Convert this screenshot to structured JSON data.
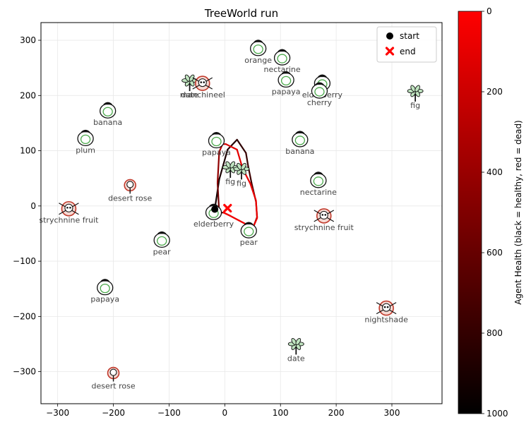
{
  "chart_data": {
    "type": "scatter",
    "title": "TreeWorld run",
    "xlabel": "",
    "ylabel": "",
    "xlim": [
      -330,
      390
    ],
    "ylim": [
      -358,
      332
    ],
    "xticks": [
      -300,
      -200,
      -100,
      0,
      100,
      200,
      300
    ],
    "yticks": [
      -300,
      -200,
      -100,
      0,
      100,
      200,
      300
    ],
    "grid": true,
    "legend": {
      "position": "top-right",
      "entries": [
        {
          "label": "start",
          "marker": "circle",
          "color": "#000000"
        },
        {
          "label": "end",
          "marker": "x",
          "color": "#ff0000"
        }
      ]
    },
    "colorbar": {
      "label": "Agent Health (black = healthy, red = dead)",
      "range": [
        0,
        1000
      ],
      "ticks": [
        0,
        200,
        400,
        600,
        800,
        1000
      ],
      "low_color": "#000000",
      "high_color": "#ff0000"
    },
    "objects": [
      {
        "label": "orange",
        "x": 60,
        "y": 285,
        "kind": "fruit"
      },
      {
        "label": "nectarine",
        "x": 103,
        "y": 268,
        "kind": "fruit"
      },
      {
        "label": "papaya",
        "x": 110,
        "y": 228,
        "kind": "fruit"
      },
      {
        "label": "elderberry",
        "x": 175,
        "y": 222,
        "kind": "fruit"
      },
      {
        "label": "cherry",
        "x": 170,
        "y": 208,
        "kind": "fruit"
      },
      {
        "label": "fig",
        "x": 342,
        "y": 203,
        "kind": "tree"
      },
      {
        "label": "date",
        "x": -63,
        "y": 222,
        "kind": "tree"
      },
      {
        "label": "manchineel",
        "x": -40,
        "y": 222,
        "kind": "skull"
      },
      {
        "label": "banana",
        "x": -210,
        "y": 172,
        "kind": "fruit"
      },
      {
        "label": "plum",
        "x": -250,
        "y": 122,
        "kind": "fruit"
      },
      {
        "label": "papaya",
        "x": -15,
        "y": 118,
        "kind": "fruit"
      },
      {
        "label": "banana",
        "x": 135,
        "y": 120,
        "kind": "fruit"
      },
      {
        "label": "fig",
        "x": 10,
        "y": 65,
        "kind": "tree"
      },
      {
        "label": "fig",
        "x": 30,
        "y": 62,
        "kind": "tree"
      },
      {
        "label": "nectarine",
        "x": 168,
        "y": 46,
        "kind": "fruit"
      },
      {
        "label": "desert rose",
        "x": -170,
        "y": 35,
        "kind": "flower"
      },
      {
        "label": "strychnine fruit",
        "x": -280,
        "y": -5,
        "kind": "skull"
      },
      {
        "label": "elderberry",
        "x": -20,
        "y": -12,
        "kind": "fruit"
      },
      {
        "label": "strychnine fruit",
        "x": 178,
        "y": -18,
        "kind": "skull"
      },
      {
        "label": "pear",
        "x": 43,
        "y": -45,
        "kind": "fruit"
      },
      {
        "label": "pear",
        "x": -113,
        "y": -62,
        "kind": "fruit"
      },
      {
        "label": "papaya",
        "x": -215,
        "y": -148,
        "kind": "fruit"
      },
      {
        "label": "nightshade",
        "x": 290,
        "y": -185,
        "kind": "skull"
      },
      {
        "label": "date",
        "x": 128,
        "y": -255,
        "kind": "tree"
      },
      {
        "label": "desert rose",
        "x": -200,
        "y": -305,
        "kind": "flower"
      }
    ],
    "path": {
      "x": [
        -18,
        -10,
        5,
        22,
        38,
        42,
        48,
        56,
        58,
        52,
        40,
        25,
        10,
        -2,
        -10,
        -13,
        -10,
        -4,
        2,
        10,
        16,
        22,
        32,
        46,
        56,
        58,
        52,
        40,
        25,
        10,
        -2,
        2,
        6,
        5
      ],
      "y": [
        -6,
        48,
        102,
        120,
        96,
        72,
        42,
        8,
        -20,
        -36,
        -34,
        -26,
        -18,
        -12,
        -12,
        42,
        98,
        112,
        112,
        108,
        105,
        102,
        68,
        40,
        10,
        -22,
        -36,
        -34,
        -26,
        -18,
        -12,
        -6,
        -4,
        -4
      ],
      "health": [
        950,
        920,
        880,
        840,
        800,
        770,
        740,
        710,
        690,
        680,
        670,
        660,
        650,
        640,
        620,
        520,
        350,
        240,
        180,
        140,
        120,
        110,
        100,
        90,
        80,
        70,
        60,
        50,
        40,
        30,
        20,
        10,
        5,
        0
      ]
    },
    "start": {
      "x": -18,
      "y": -6
    },
    "end": {
      "x": 5,
      "y": -4
    }
  }
}
